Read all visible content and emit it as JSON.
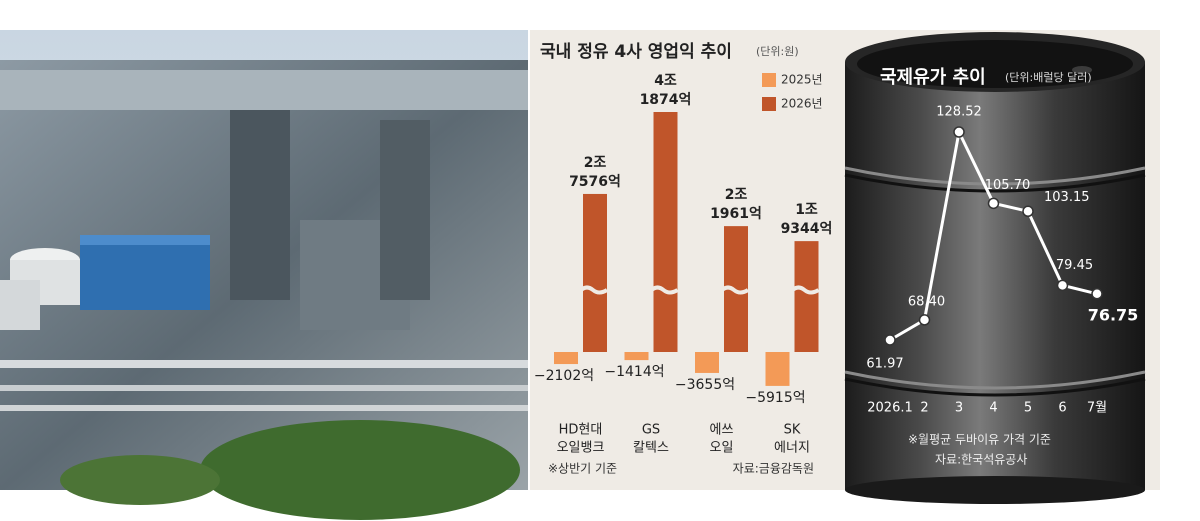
{
  "chart_data": [
    {
      "type": "bar",
      "title": "국내 정유 4사 영업익 추이",
      "unit": "(단위:원)",
      "categories": [
        [
          "HD현대",
          "오일뱅크"
        ],
        [
          "GS",
          "칼텍스"
        ],
        [
          "에쓰",
          "오일"
        ],
        [
          "SK",
          "에너지"
        ]
      ],
      "series": [
        {
          "name": "2025년",
          "color": "#f39a57",
          "values": [
            -2102,
            -1414,
            -3655,
            -5915
          ],
          "value_labels": [
            [
              "−2102억"
            ],
            [
              "−1414억"
            ],
            [
              "−3655억"
            ],
            [
              "−5915억"
            ]
          ]
        },
        {
          "name": "2026년",
          "color": "#c0552a",
          "values": [
            27576,
            41874,
            21961,
            19344
          ],
          "value_labels": [
            [
              "2조",
              "7576억"
            ],
            [
              "4조",
              "1874억"
            ],
            [
              "2조",
              "1961억"
            ],
            [
              "1조",
              "9344억"
            ]
          ]
        }
      ],
      "notes": [
        "※상반기 기준",
        "자료:금융감독원"
      ]
    },
    {
      "type": "line",
      "title": "국제유가 추이",
      "unit": "(단위:배럴당 달러)",
      "categories": [
        "2026.1",
        "2",
        "3",
        "4",
        "5",
        "6",
        "7월"
      ],
      "series": [
        {
          "color": "#ffffff",
          "values": [
            61.97,
            68.4,
            128.52,
            105.7,
            103.15,
            79.45,
            76.75
          ],
          "value_labels": [
            "61.97",
            "68.40",
            "128.52",
            "105.70",
            "103.15",
            "79.45",
            "76.75"
          ]
        }
      ],
      "notes": [
        "※월평균 두바이유 가격 기준",
        "자료:한국석유공사"
      ]
    }
  ]
}
